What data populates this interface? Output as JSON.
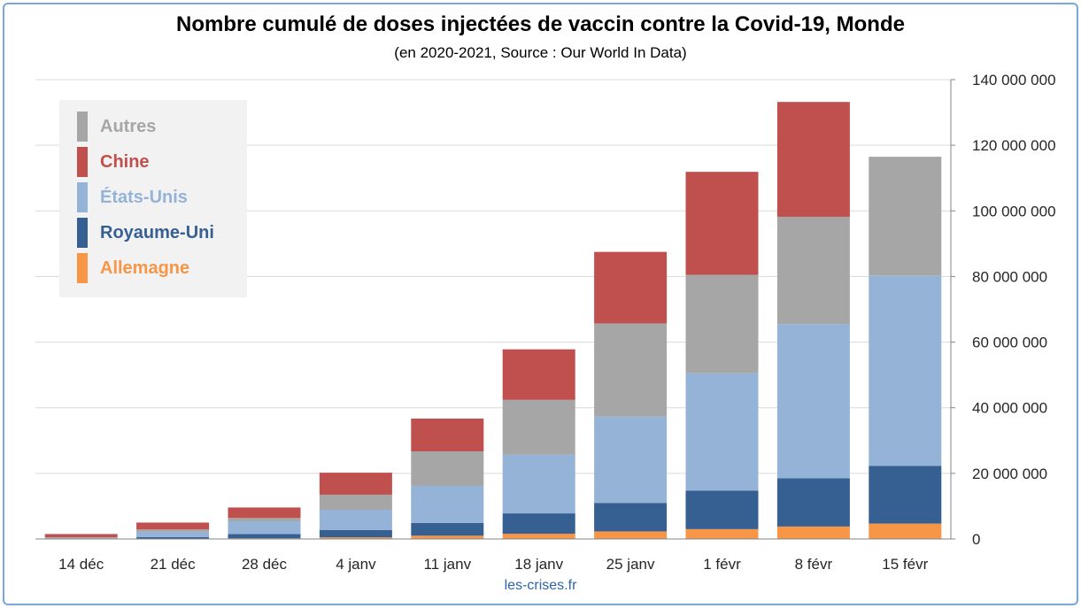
{
  "chart_data": {
    "type": "bar",
    "stacked": true,
    "title": "Nombre cumulé de doses injectées de vaccin contre la Covid-19, Monde",
    "subtitle": "(en 2020-2021, Source : Our World In Data)",
    "categories": [
      "14 déc",
      "21 déc",
      "28 déc",
      "4 janv",
      "11 janv",
      "18 janv",
      "25 janv",
      "1 févr",
      "8 févr",
      "15 févr"
    ],
    "y_ticks": [
      "0",
      "20 000 000",
      "40 000 000",
      "60 000 000",
      "80 000 000",
      "100 000 000",
      "120 000 000",
      "140 000 000"
    ],
    "ylim": [
      0,
      140000000
    ],
    "y_axis_side": "right",
    "grid": true,
    "legend_position": "top-left",
    "series": [
      {
        "name": "Allemagne",
        "color": "#f79646",
        "values": [
          0,
          0,
          200000,
          500000,
          1000000,
          1600000,
          2300000,
          3000000,
          3800000,
          4700000
        ]
      },
      {
        "name": "Royaume-Uni",
        "color": "#376092",
        "values": [
          100000,
          600000,
          1300000,
          2200000,
          3900000,
          6200000,
          8700000,
          11700000,
          14700000,
          17600000
        ]
      },
      {
        "name": "États-Unis",
        "color": "#95b3d7",
        "values": [
          200000,
          1600000,
          3900000,
          6200000,
          11300000,
          17900000,
          26300000,
          35800000,
          47000000,
          58000000
        ]
      },
      {
        "name": "Autres",
        "color": "#a6a6a6",
        "values": [
          200000,
          700000,
          1000000,
          4600000,
          10500000,
          16700000,
          28400000,
          30000000,
          32700000,
          36200000
        ]
      },
      {
        "name": "Chine",
        "color": "#c0504d",
        "values": [
          1000000,
          2100000,
          3200000,
          6700000,
          10000000,
          15400000,
          21800000,
          31400000,
          35000000,
          0
        ]
      }
    ],
    "legend_order": [
      "Autres",
      "Chine",
      "États-Unis",
      "Royaume-Uni",
      "Allemagne"
    ]
  },
  "watermark": "les-crises.fr"
}
